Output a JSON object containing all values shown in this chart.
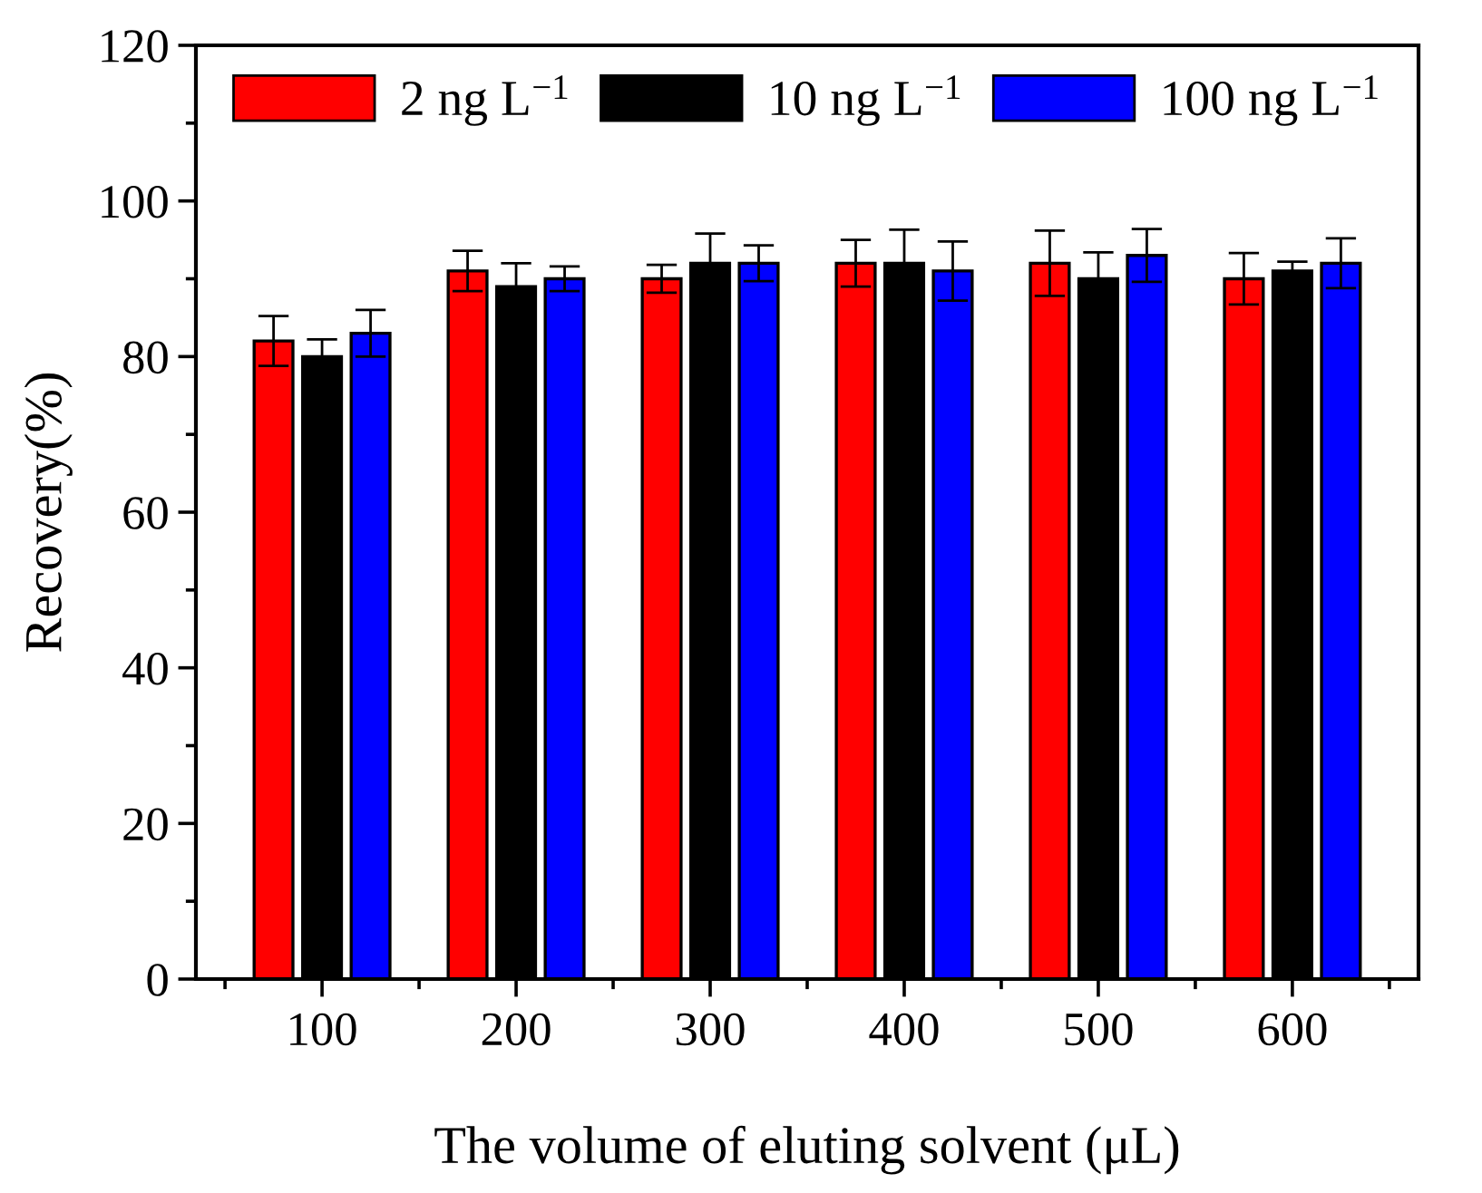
{
  "chart_data": {
    "type": "bar",
    "xlabel": "The volume of eluting solvent (μL)",
    "ylabel": "Recovery(%)",
    "categories": [
      "100",
      "200",
      "300",
      "400",
      "500",
      "600"
    ],
    "series": [
      {
        "name": "2 ng L$^{−1}$",
        "color": "#ff0000",
        "values": [
          82,
          91,
          90,
          92,
          92,
          90
        ],
        "errors": [
          3.2,
          2.6,
          1.8,
          3,
          4.2,
          3.3
        ]
      },
      {
        "name": "10 ng L$^{−1}$",
        "color": "#000000",
        "values": [
          80,
          89,
          92,
          92,
          90,
          91
        ],
        "errors": [
          2.2,
          3,
          3.8,
          4.3,
          3.4,
          1.2
        ]
      },
      {
        "name": "100 ng L$^{−1}$",
        "color": "#0000ff",
        "values": [
          83,
          90,
          92,
          91,
          93,
          92
        ],
        "errors": [
          3,
          1.6,
          2.3,
          3.8,
          3.4,
          3.2
        ]
      }
    ],
    "ylim": [
      0,
      120
    ],
    "yticks": [
      0,
      20,
      40,
      60,
      80,
      100,
      120
    ],
    "grid": false,
    "legend": "top"
  }
}
